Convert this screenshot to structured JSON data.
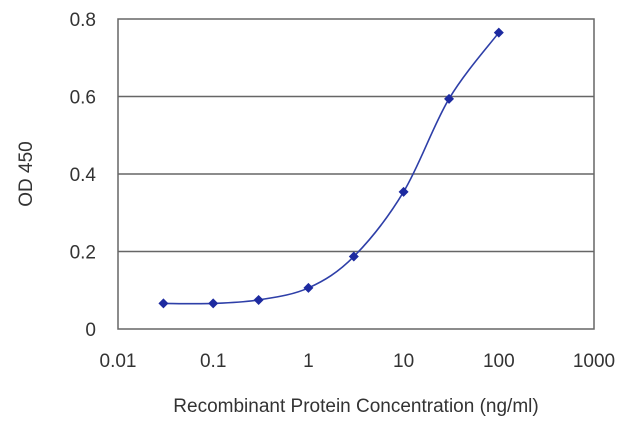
{
  "chart_data": {
    "type": "line",
    "title": "",
    "xlabel": "Recombinant Protein Concentration (ng/ml)",
    "ylabel": "OD 450",
    "x_scale": "log",
    "xlim": [
      0.01,
      1000
    ],
    "ylim": [
      0,
      0.8
    ],
    "x_ticks": [
      "0.01",
      "0.1",
      "1",
      "10",
      "100",
      "1000"
    ],
    "y_ticks": [
      "0",
      "0.2",
      "0.4",
      "0.6",
      "0.8"
    ],
    "grid": "horizontal",
    "legend": "none",
    "series": [
      {
        "color": "#1d2aa0",
        "x": [
          0.03,
          0.1,
          0.3,
          1,
          3,
          10,
          30,
          100
        ],
        "y": [
          0.066,
          0.066,
          0.075,
          0.106,
          0.187,
          0.354,
          0.594,
          0.765
        ]
      }
    ]
  }
}
